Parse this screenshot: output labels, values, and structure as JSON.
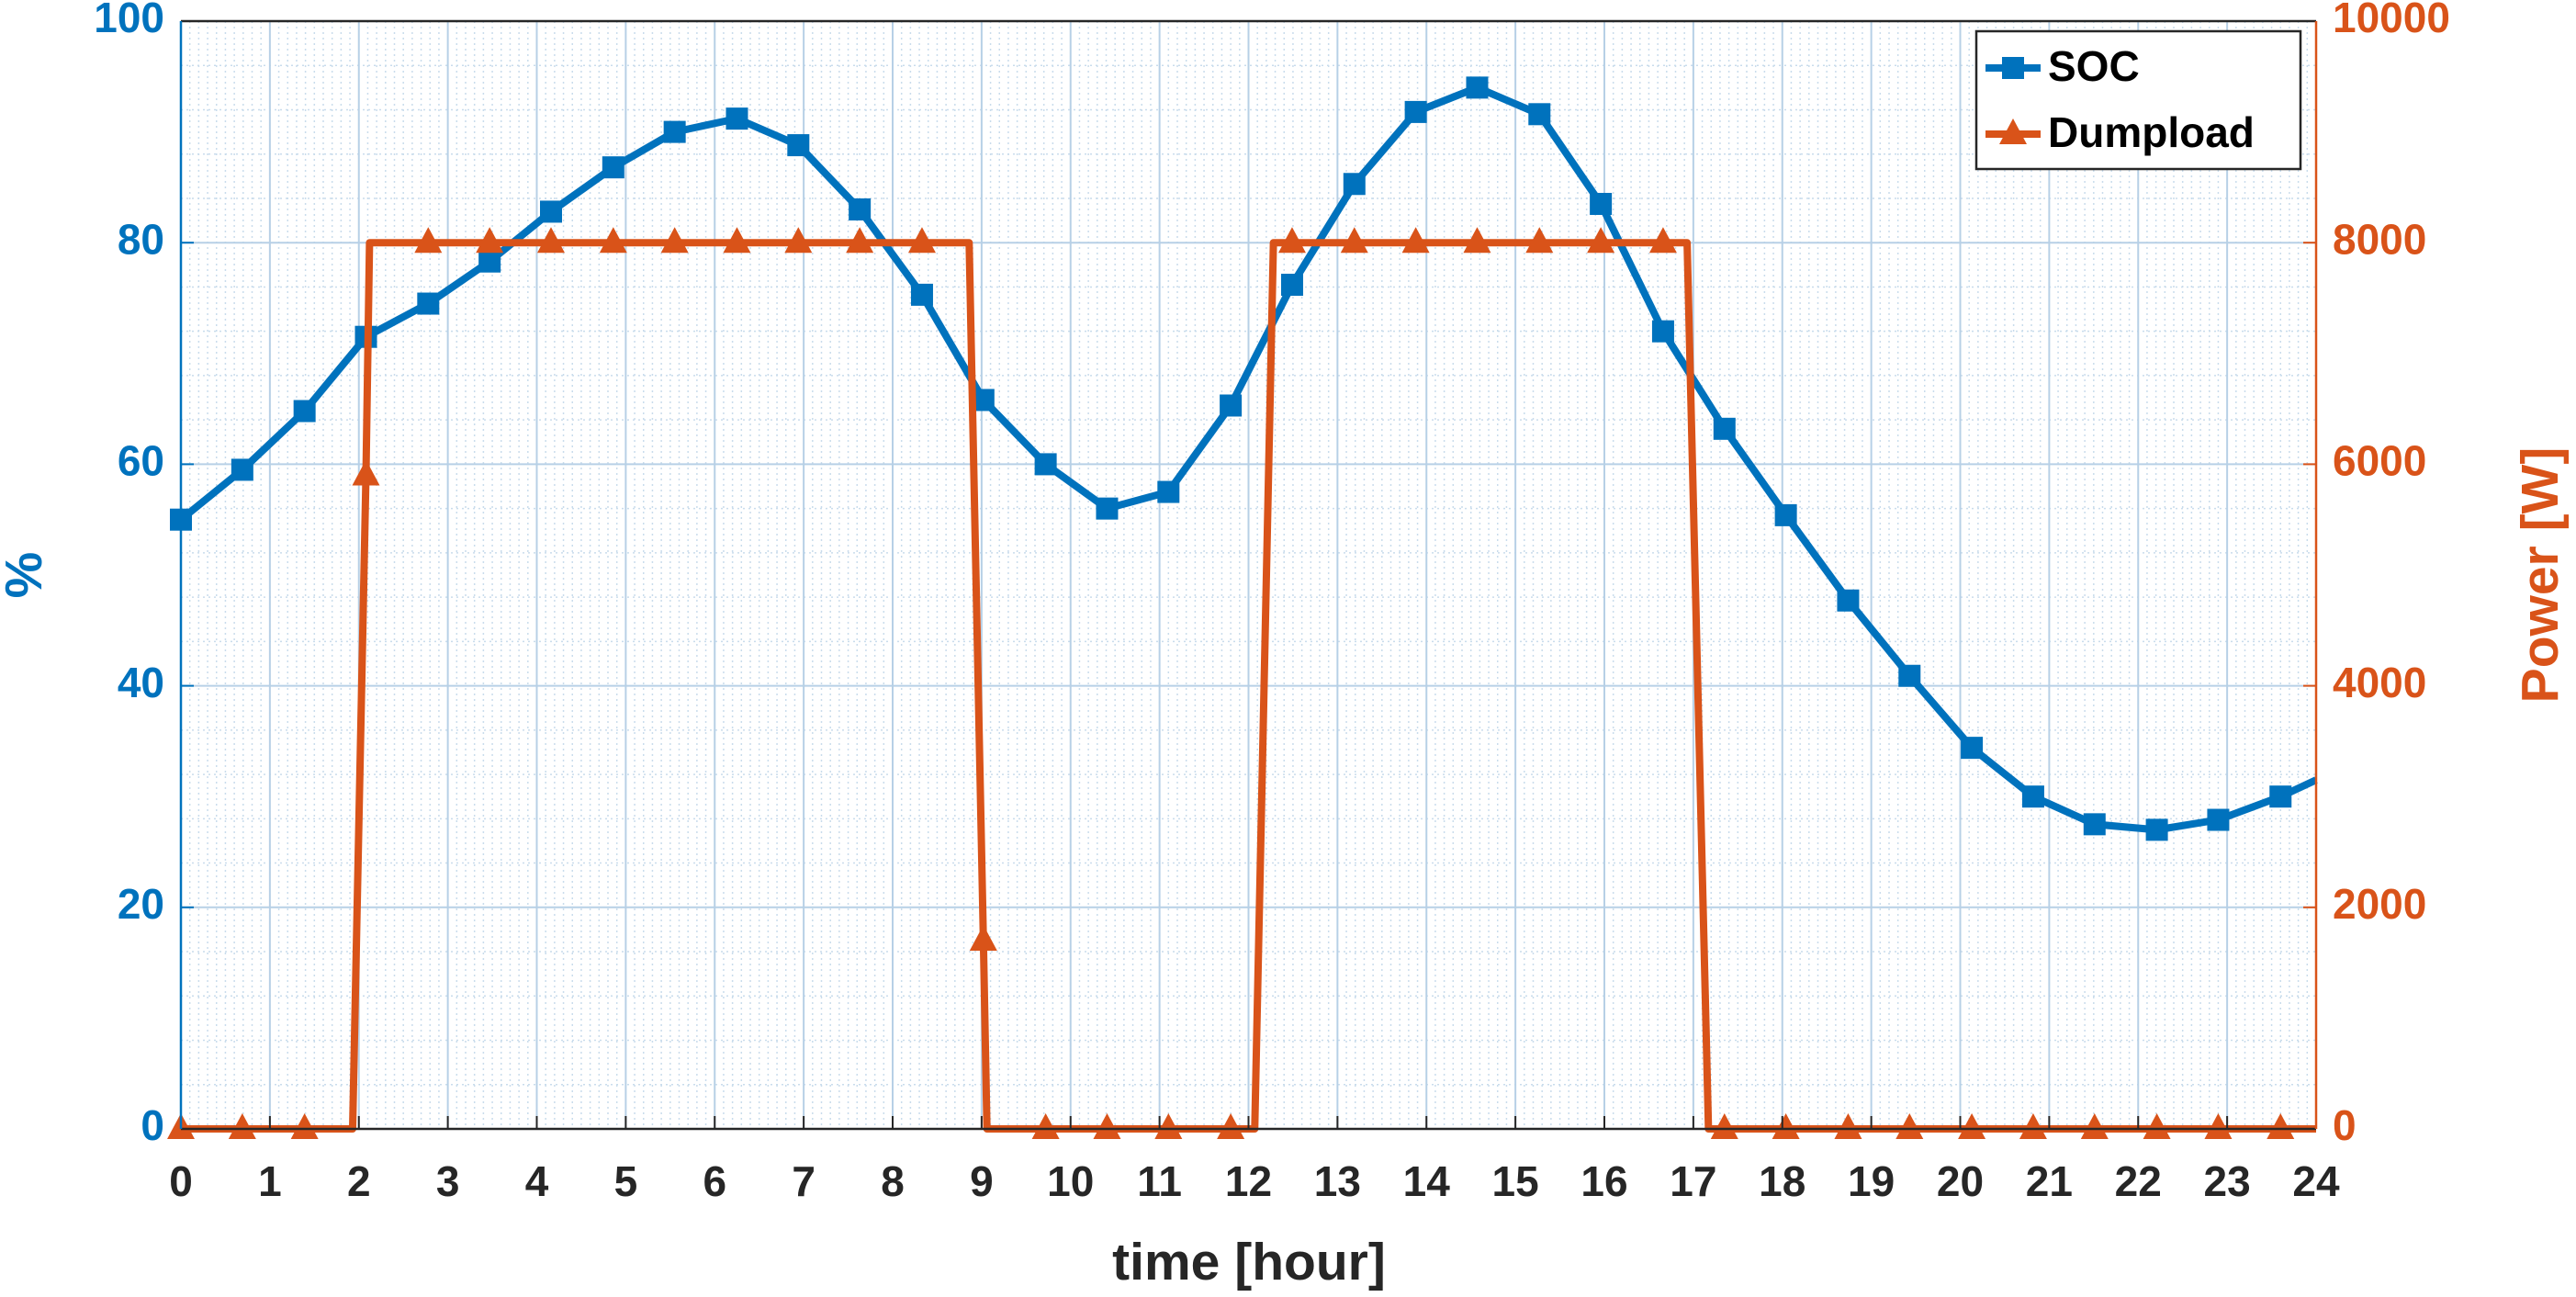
{
  "chart_data": {
    "type": "line",
    "xlabel": "time [hour]",
    "ylabel": "%",
    "y2label": "Power [W]",
    "xlim": [
      0,
      24
    ],
    "xticks": [
      0,
      1,
      2,
      3,
      4,
      5,
      6,
      7,
      8,
      9,
      10,
      11,
      12,
      13,
      14,
      15,
      16,
      17,
      18,
      19,
      20,
      21,
      22,
      23,
      24
    ],
    "ylim": [
      0,
      100
    ],
    "yticks": [
      0,
      20,
      40,
      60,
      80,
      100
    ],
    "y2lim": [
      0,
      10000
    ],
    "y2ticks": [
      0,
      2000,
      4000,
      6000,
      8000,
      10000
    ],
    "grid": true,
    "minor_grid": true,
    "legend": "northeast",
    "series": [
      {
        "name": "SOC",
        "color": "#0072BD",
        "marker": "square",
        "x": [
          0,
          0.69,
          1.39,
          2.08,
          2.78,
          3.47,
          4.16,
          4.86,
          5.55,
          6.25,
          6.94,
          7.63,
          8.33,
          9.02,
          9.72,
          10.41,
          11.1,
          11.8,
          12.49,
          13.19,
          13.88,
          14.57,
          15.27,
          15.96,
          16.66,
          17.35,
          18.04,
          18.74,
          19.43,
          20.13,
          20.82,
          21.51,
          22.21,
          22.9,
          23.6,
          24
        ],
        "values": [
          55,
          59.5,
          64.8,
          71.5,
          74.5,
          78.3,
          82.8,
          86.8,
          90,
          91.2,
          88.8,
          83,
          75.3,
          65.8,
          60,
          56,
          57.5,
          65.3,
          76.2,
          85.3,
          91.8,
          94,
          91.6,
          83.5,
          72,
          63.2,
          55.4,
          47.7,
          40.9,
          34.4,
          30,
          27.5,
          27,
          27.9,
          30,
          31.5
        ],
        "marker_indices": [
          0,
          1,
          2,
          3,
          4,
          5,
          6,
          7,
          8,
          9,
          10,
          11,
          12,
          13,
          14,
          15,
          16,
          17,
          18,
          19,
          20,
          21,
          22,
          23,
          24,
          25,
          26,
          27,
          28,
          29,
          30,
          31,
          32,
          33,
          34
        ]
      },
      {
        "name": "Dumpload",
        "color": "#D95319",
        "marker": "triangle",
        "axis": "y2",
        "x": [
          0,
          0.69,
          1.39,
          1.93,
          2.08,
          2.12,
          2.78,
          3.47,
          4.16,
          4.86,
          5.55,
          6.25,
          6.94,
          7.63,
          8.33,
          8.86,
          9.02,
          9.06,
          9.72,
          10.41,
          11.1,
          11.8,
          12.07,
          12.28,
          12.49,
          13.19,
          13.88,
          14.57,
          15.27,
          15.96,
          16.66,
          16.93,
          17.17,
          17.35,
          18.04,
          18.74,
          19.43,
          20.13,
          20.82,
          21.51,
          22.21,
          22.9,
          23.6,
          24
        ],
        "values": [
          0,
          0,
          0,
          0,
          5900,
          8000,
          8000,
          8000,
          8000,
          8000,
          8000,
          8000,
          8000,
          8000,
          8000,
          8000,
          1700,
          0,
          0,
          0,
          0,
          0,
          0,
          8000,
          8000,
          8000,
          8000,
          8000,
          8000,
          8000,
          8000,
          8000,
          0,
          0,
          0,
          0,
          0,
          0,
          0,
          0,
          0,
          0,
          0,
          0
        ],
        "marker_indices": [
          0,
          1,
          2,
          4,
          6,
          7,
          8,
          9,
          10,
          11,
          12,
          13,
          14,
          16,
          18,
          19,
          20,
          21,
          24,
          25,
          26,
          27,
          28,
          29,
          30,
          33,
          34,
          35,
          36,
          37,
          38,
          39,
          40,
          41,
          42
        ]
      }
    ]
  }
}
